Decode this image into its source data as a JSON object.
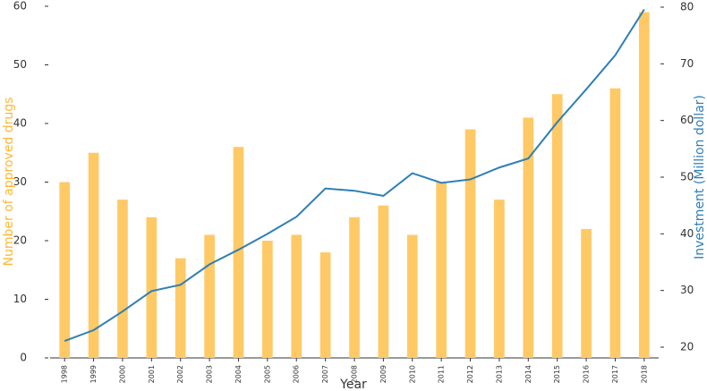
{
  "chart_data": {
    "type": "bar",
    "x_label": "Year",
    "y_label": "Number of approved drugs",
    "y2_label": "Investment (Million dollar)",
    "categories": [
      "1998",
      "1999",
      "2000",
      "2001",
      "2002",
      "2003",
      "2004",
      "2005",
      "2006",
      "2007",
      "2008",
      "2009",
      "2010",
      "2011",
      "2012",
      "2013",
      "2014",
      "2015",
      "2016",
      "2017",
      "2018"
    ],
    "series": [
      {
        "type": "bar",
        "color": "#ffc966",
        "values": [
          30,
          35,
          27,
          24,
          17,
          21,
          36,
          20,
          21,
          18,
          24,
          26,
          21,
          30,
          39,
          27,
          41,
          45,
          22,
          46,
          59
        ]
      },
      {
        "type": "line",
        "axis": "y2",
        "color": "#2f7fb5",
        "values": [
          21.1,
          23,
          26.3,
          29.9,
          31,
          34.6,
          37.2,
          40,
          43,
          48,
          47.6,
          46.7,
          50.7,
          49,
          49.6,
          51.7,
          53.3,
          59.7,
          65.5,
          71.5,
          79.6
        ]
      }
    ],
    "ylim": [
      0,
      60
    ],
    "yticks": [
      0,
      10,
      20,
      30,
      40,
      50,
      60
    ],
    "y2lim": [
      20,
      80
    ],
    "y2ticks": [
      20,
      30,
      40,
      50,
      60,
      70,
      80
    ],
    "y_label_color": "#ffb733",
    "y2_label_color": "#2f7fb5"
  }
}
